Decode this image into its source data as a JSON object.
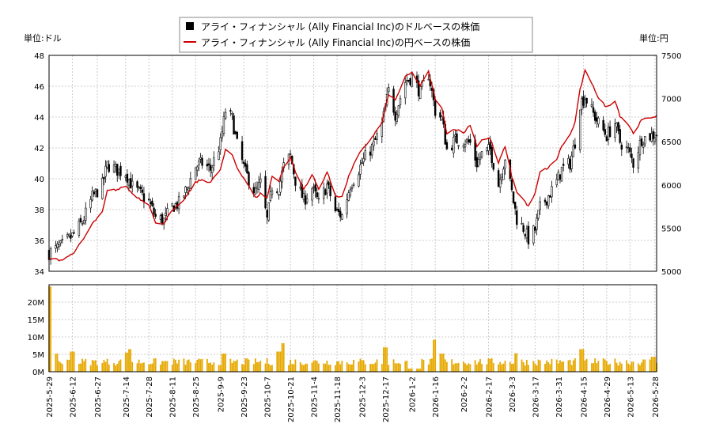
{
  "chart_data": [
    {
      "type": "candlestick+line",
      "legend": {
        "placement": "top-center",
        "entries": [
          {
            "label": "アライ・フィナンシャル (Ally Financial Inc)のドルベースの株価",
            "color": "#000000",
            "marker": "square"
          },
          {
            "label": "アライ・フィナンシャル (Ally Financial Inc)の円ベースの株価",
            "color": "#cc0000",
            "marker": "line"
          }
        ]
      },
      "left_axis": {
        "unit_label": "単位:ドル",
        "ylim": [
          34,
          48
        ],
        "ticks": [
          34,
          36,
          38,
          40,
          42,
          44,
          46,
          48
        ]
      },
      "right_axis": {
        "unit_label": "単位:円",
        "ylim": [
          5000,
          7500
        ],
        "ticks": [
          5000,
          5500,
          6000,
          6500,
          7000,
          7500
        ]
      },
      "grid": true,
      "x_range": [
        "2025-05-29",
        "2026-05-29"
      ],
      "usd_anchors": [
        [
          "2025-05-29",
          35.2
        ],
        [
          "2025-06-05",
          35.6
        ],
        [
          "2025-06-12",
          36.3
        ],
        [
          "2025-06-18",
          37.2
        ],
        [
          "2025-06-24",
          38.8
        ],
        [
          "2025-06-30",
          39.6
        ],
        [
          "2025-07-03",
          40.9
        ],
        [
          "2025-07-10",
          40.5
        ],
        [
          "2025-07-14",
          40.4
        ],
        [
          "2025-07-18",
          39.5
        ],
        [
          "2025-07-24",
          38.9
        ],
        [
          "2025-07-28",
          38.5
        ],
        [
          "2025-08-01",
          37.5
        ],
        [
          "2025-08-06",
          37.3
        ],
        [
          "2025-08-11",
          38.2
        ],
        [
          "2025-08-15",
          38.4
        ],
        [
          "2025-08-20",
          39.4
        ],
        [
          "2025-08-25",
          40.8
        ],
        [
          "2025-08-29",
          41.0
        ],
        [
          "2025-09-03",
          40.6
        ],
        [
          "2025-09-09",
          42.3
        ],
        [
          "2025-09-12",
          44.4
        ],
        [
          "2025-09-16",
          43.9
        ],
        [
          "2025-09-19",
          42.2
        ],
        [
          "2025-09-24",
          40.4
        ],
        [
          "2025-09-30",
          39.1
        ],
        [
          "2025-10-03",
          39.7
        ],
        [
          "2025-10-07",
          37.3
        ],
        [
          "2025-10-10",
          39.5
        ],
        [
          "2025-10-14",
          39.4
        ],
        [
          "2025-10-17",
          40.8
        ],
        [
          "2025-10-21",
          41.5
        ],
        [
          "2025-10-24",
          39.9
        ],
        [
          "2025-10-29",
          38.6
        ],
        [
          "2025-11-03",
          39.4
        ],
        [
          "2025-11-07",
          38.4
        ],
        [
          "2025-11-12",
          39.6
        ],
        [
          "2025-11-17",
          37.9
        ],
        [
          "2025-11-21",
          37.6
        ],
        [
          "2025-11-26",
          39.6
        ],
        [
          "2025-12-01",
          40.6
        ],
        [
          "2025-12-05",
          41.4
        ],
        [
          "2025-12-10",
          42.2
        ],
        [
          "2025-12-15",
          43.5
        ],
        [
          "2025-12-19",
          45.7
        ],
        [
          "2025-12-23",
          44.2
        ],
        [
          "2025-12-29",
          46.3
        ],
        [
          "2026-01-02",
          46.6
        ],
        [
          "2026-01-07",
          45.6
        ],
        [
          "2026-01-12",
          46.8
        ],
        [
          "2026-01-16",
          44.4
        ],
        [
          "2026-01-20",
          43.9
        ],
        [
          "2026-01-23",
          41.9
        ],
        [
          "2026-01-28",
          42.5
        ],
        [
          "2026-02-02",
          42.5
        ],
        [
          "2026-02-06",
          42.3
        ],
        [
          "2026-02-10",
          41.0
        ],
        [
          "2026-02-13",
          41.6
        ],
        [
          "2026-02-18",
          41.9
        ],
        [
          "2026-02-23",
          39.6
        ],
        [
          "2026-02-27",
          41.4
        ],
        [
          "2026-03-03",
          39.1
        ],
        [
          "2026-03-06",
          37.4
        ],
        [
          "2026-03-10",
          36.8
        ],
        [
          "2026-03-13",
          36.1
        ],
        [
          "2026-03-17",
          36.7
        ],
        [
          "2026-03-20",
          38.1
        ],
        [
          "2026-03-25",
          38.9
        ],
        [
          "2026-03-30",
          39.8
        ],
        [
          "2026-04-02",
          40.6
        ],
        [
          "2026-04-07",
          41.0
        ],
        [
          "2026-04-10",
          42.4
        ],
        [
          "2026-04-13",
          44.9
        ],
        [
          "2026-04-16",
          45.3
        ],
        [
          "2026-04-21",
          44.2
        ],
        [
          "2026-04-24",
          43.6
        ],
        [
          "2026-04-29",
          42.8
        ],
        [
          "2026-05-04",
          43.6
        ],
        [
          "2026-05-07",
          42.4
        ],
        [
          "2026-05-12",
          41.8
        ],
        [
          "2026-05-15",
          41.0
        ],
        [
          "2026-05-20",
          42.6
        ],
        [
          "2026-05-29",
          42.9
        ]
      ],
      "jpy_anchors": [
        [
          "2025-05-29",
          5150
        ],
        [
          "2025-06-05",
          5130
        ],
        [
          "2025-06-12",
          5200
        ],
        [
          "2025-06-18",
          5350
        ],
        [
          "2025-06-24",
          5550
        ],
        [
          "2025-06-30",
          5680
        ],
        [
          "2025-07-03",
          5930
        ],
        [
          "2025-07-10",
          5950
        ],
        [
          "2025-07-14",
          5990
        ],
        [
          "2025-07-18",
          5900
        ],
        [
          "2025-07-24",
          5820
        ],
        [
          "2025-07-28",
          5780
        ],
        [
          "2025-08-01",
          5550
        ],
        [
          "2025-08-06",
          5560
        ],
        [
          "2025-08-11",
          5700
        ],
        [
          "2025-08-15",
          5760
        ],
        [
          "2025-08-20",
          5880
        ],
        [
          "2025-08-25",
          6030
        ],
        [
          "2025-08-29",
          6060
        ],
        [
          "2025-09-03",
          6030
        ],
        [
          "2025-09-09",
          6180
        ],
        [
          "2025-09-12",
          6400
        ],
        [
          "2025-09-16",
          6350
        ],
        [
          "2025-09-19",
          6200
        ],
        [
          "2025-09-24",
          6050
        ],
        [
          "2025-09-30",
          5850
        ],
        [
          "2025-10-03",
          5900
        ],
        [
          "2025-10-07",
          5850
        ],
        [
          "2025-10-10",
          6100
        ],
        [
          "2025-10-14",
          6050
        ],
        [
          "2025-10-17",
          6200
        ],
        [
          "2025-10-21",
          6320
        ],
        [
          "2025-10-24",
          6150
        ],
        [
          "2025-10-29",
          5950
        ],
        [
          "2025-11-03",
          6120
        ],
        [
          "2025-11-07",
          5950
        ],
        [
          "2025-11-12",
          6150
        ],
        [
          "2025-11-17",
          5880
        ],
        [
          "2025-11-21",
          5860
        ],
        [
          "2025-11-26",
          6150
        ],
        [
          "2025-12-01",
          6350
        ],
        [
          "2025-12-05",
          6450
        ],
        [
          "2025-12-10",
          6580
        ],
        [
          "2025-12-15",
          6720
        ],
        [
          "2025-12-19",
          7050
        ],
        [
          "2025-12-23",
          6980
        ],
        [
          "2025-12-29",
          7250
        ],
        [
          "2026-01-02",
          7300
        ],
        [
          "2026-01-07",
          7150
        ],
        [
          "2026-01-12",
          7310
        ],
        [
          "2026-01-16",
          7000
        ],
        [
          "2026-01-20",
          6880
        ],
        [
          "2026-01-23",
          6600
        ],
        [
          "2026-01-28",
          6650
        ],
        [
          "2026-02-02",
          6600
        ],
        [
          "2026-02-06",
          6700
        ],
        [
          "2026-02-10",
          6450
        ],
        [
          "2026-02-13",
          6520
        ],
        [
          "2026-02-18",
          6540
        ],
        [
          "2026-02-23",
          6250
        ],
        [
          "2026-02-27",
          6450
        ],
        [
          "2026-03-03",
          6100
        ],
        [
          "2026-03-06",
          5920
        ],
        [
          "2026-03-10",
          5830
        ],
        [
          "2026-03-13",
          5750
        ],
        [
          "2026-03-17",
          5900
        ],
        [
          "2026-03-20",
          6150
        ],
        [
          "2026-03-25",
          6200
        ],
        [
          "2026-03-30",
          6300
        ],
        [
          "2026-04-02",
          6450
        ],
        [
          "2026-04-07",
          6580
        ],
        [
          "2026-04-10",
          6720
        ],
        [
          "2026-04-13",
          7100
        ],
        [
          "2026-04-16",
          7320
        ],
        [
          "2026-04-21",
          7150
        ],
        [
          "2026-04-24",
          7000
        ],
        [
          "2026-04-29",
          6900
        ],
        [
          "2026-05-04",
          6980
        ],
        [
          "2026-05-07",
          6800
        ],
        [
          "2026-05-12",
          6700
        ],
        [
          "2026-05-15",
          6600
        ],
        [
          "2026-05-20",
          6750
        ],
        [
          "2026-05-29",
          6800
        ]
      ]
    },
    {
      "type": "bar",
      "y_ticks": [
        "0M",
        "5M",
        "10M",
        "15M",
        "20M"
      ],
      "ylim": [
        0,
        25
      ],
      "bar_color": "#e6a800",
      "x_tick_labels": [
        "2025-5-29",
        "2025-6-12",
        "2025-6-27",
        "2025-7-14",
        "2025-7-28",
        "2025-8-11",
        "2025-8-25",
        "2025-9-9",
        "2025-9-23",
        "2025-10-7",
        "2025-10-21",
        "2025-11-4",
        "2025-11-18",
        "2025-12-3",
        "2025-12-17",
        "2026-1-2",
        "2026-1-16",
        "2026-2-2",
        "2026-2-17",
        "2026-3-3",
        "2026-3-17",
        "2026-3-31",
        "2026-4-15",
        "2026-4-29",
        "2026-5-13",
        "2026-5-28"
      ],
      "volume_spikes": [
        [
          "2025-05-29",
          24.5
        ],
        [
          "2025-05-31",
          5.5
        ],
        [
          "2025-06-02",
          5.2
        ],
        [
          "2025-06-12",
          5.8
        ],
        [
          "2025-07-14",
          5.5
        ],
        [
          "2025-07-16",
          6.5
        ],
        [
          "2025-09-11",
          5.2
        ],
        [
          "2025-10-14",
          5.8
        ],
        [
          "2025-10-16",
          8.2
        ],
        [
          "2025-12-17",
          7.0
        ],
        [
          "2026-01-16",
          9.2
        ],
        [
          "2026-01-20",
          5.2
        ],
        [
          "2026-03-06",
          5.3
        ],
        [
          "2026-04-14",
          6.5
        ],
        [
          "2026-05-27",
          4.3
        ]
      ],
      "low_volume_period": [
        "2025-12-31",
        "2026-01-07"
      ],
      "typical_volume": 3.0
    }
  ]
}
